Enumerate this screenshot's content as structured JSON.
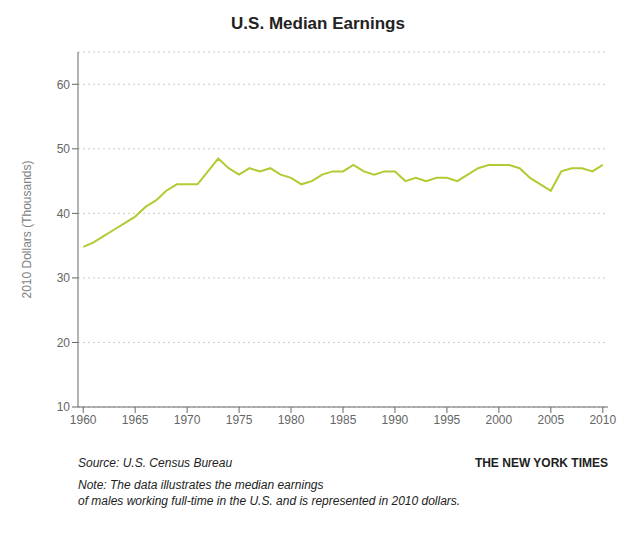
{
  "chart_data": {
    "type": "line",
    "title": "U.S. Median Earnings",
    "ylabel": "2010 Dollars (Thousands)",
    "color": "#b5c932",
    "x": [
      1960,
      1961,
      1962,
      1963,
      1964,
      1965,
      1966,
      1967,
      1968,
      1969,
      1970,
      1971,
      1972,
      1973,
      1974,
      1975,
      1976,
      1977,
      1978,
      1979,
      1980,
      1981,
      1982,
      1983,
      1984,
      1985,
      1986,
      1987,
      1988,
      1989,
      1990,
      1991,
      1992,
      1993,
      1994,
      1995,
      1996,
      1997,
      1998,
      1999,
      2000,
      2001,
      2002,
      2003,
      2004,
      2005,
      2006,
      2007,
      2008,
      2009,
      2010
    ],
    "values": [
      34.8,
      35.5,
      36.5,
      37.5,
      38.5,
      39.5,
      41.0,
      42.0,
      43.5,
      44.5,
      44.5,
      44.5,
      46.5,
      48.5,
      47.0,
      46.0,
      47.0,
      46.5,
      47.0,
      46.0,
      45.5,
      44.5,
      45.0,
      46.0,
      46.5,
      46.5,
      47.5,
      46.5,
      46.0,
      46.5,
      46.5,
      45.0,
      45.5,
      45.0,
      45.5,
      45.5,
      45.0,
      46.0,
      47.0,
      47.5,
      47.5,
      47.5,
      47.0,
      45.5,
      44.5,
      43.5,
      46.5,
      47.0,
      47.0,
      46.5,
      47.5
    ],
    "xlim": [
      1959.5,
      2010.5
    ],
    "ylim": [
      10,
      65
    ],
    "xticks": [
      1960,
      1965,
      1970,
      1975,
      1980,
      1985,
      1990,
      1995,
      2000,
      2005,
      2010
    ],
    "yticks": [
      10,
      20,
      30,
      40,
      50,
      60
    ],
    "grid": true,
    "annotations": [
      "Source: U.S. Census Bureau",
      "THE NEW YORK TIMES",
      "Note: The data illustrates the median earnings\nof males working full-time in the U.S. and is represented in 2010 dollars."
    ]
  }
}
